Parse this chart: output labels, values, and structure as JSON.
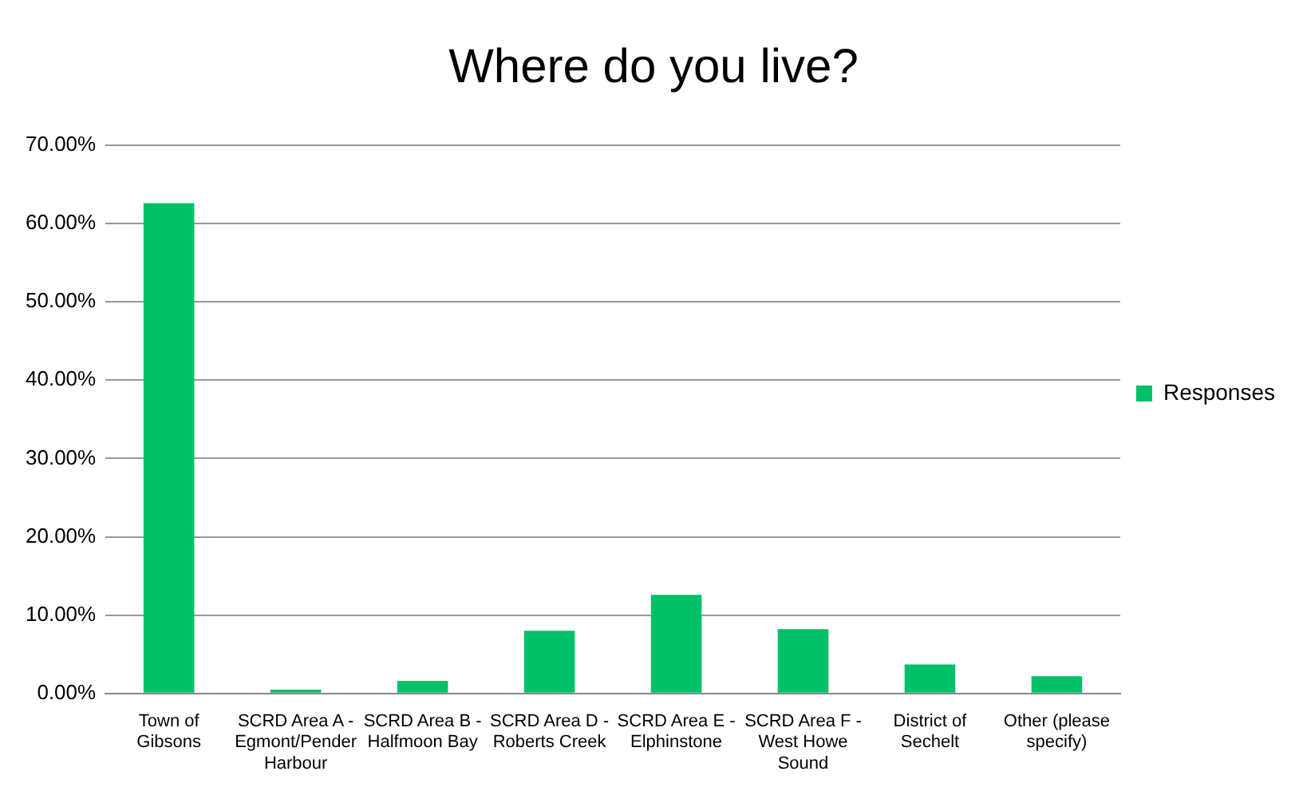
{
  "chart_data": {
    "type": "bar",
    "title": "Where do you live?",
    "categories": [
      "Town of Gibsons",
      "SCRD Area A - Egmont/Pender Harbour",
      "SCRD Area B - Halfmoon Bay",
      "SCRD Area D - Roberts Creek",
      "SCRD Area E - Elphinstone",
      "SCRD Area F - West Howe Sound",
      "District of Sechelt",
      "Other (please specify)"
    ],
    "series": [
      {
        "name": "Responses",
        "color": "#00c06a",
        "values": [
          62.6,
          0.5,
          1.6,
          8.0,
          12.6,
          8.2,
          3.7,
          2.2
        ]
      }
    ],
    "ylim": [
      0,
      70
    ],
    "yticks": [
      {
        "value": 0,
        "label": "0.00%"
      },
      {
        "value": 10,
        "label": "10.00%"
      },
      {
        "value": 20,
        "label": "20.00%"
      },
      {
        "value": 30,
        "label": "30.00%"
      },
      {
        "value": 40,
        "label": "40.00%"
      },
      {
        "value": 50,
        "label": "50.00%"
      },
      {
        "value": 60,
        "label": "60.00%"
      },
      {
        "value": 70,
        "label": "70.00%"
      }
    ],
    "grid": "y",
    "legend": "right"
  }
}
